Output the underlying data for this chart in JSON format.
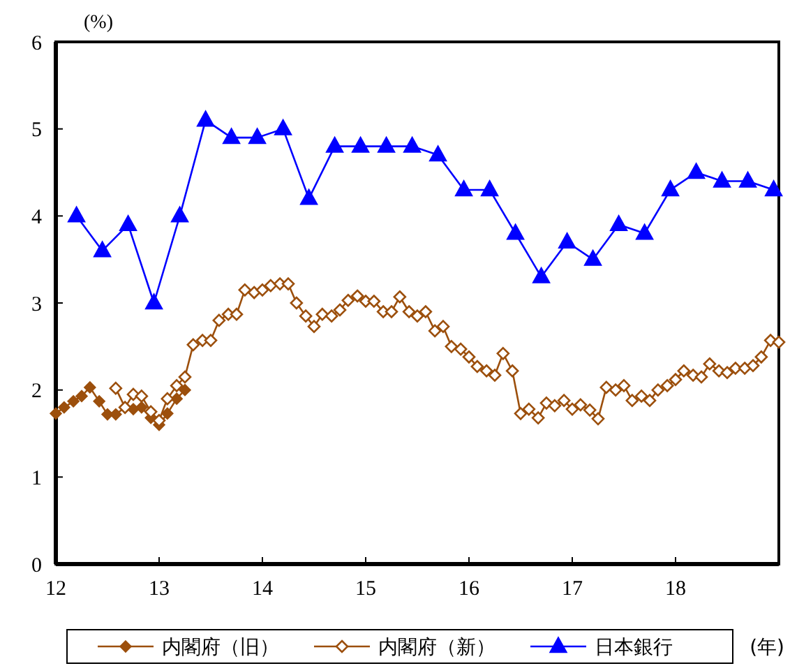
{
  "chart_data": {
    "type": "line",
    "ylabel": "(%)",
    "xlabel": "(年)",
    "xlim": [
      12,
      19
    ],
    "xticks": [
      12,
      13,
      14,
      15,
      16,
      17,
      18
    ],
    "ylim": [
      0,
      6
    ],
    "yticks": [
      0,
      1,
      2,
      3,
      4,
      5,
      6
    ],
    "grid": false,
    "legend": "bottom",
    "series": [
      {
        "name": "内閣府（旧）",
        "color": "#9c4f0c",
        "marker": "diamond",
        "x": [
          12.0,
          12.08,
          12.17,
          12.25,
          12.33,
          12.42,
          12.5,
          12.58,
          12.67,
          12.75,
          12.83,
          12.92,
          13.0,
          13.08,
          13.17,
          13.25
        ],
        "values": [
          1.73,
          1.8,
          1.87,
          1.93,
          2.03,
          1.87,
          1.72,
          1.72,
          1.8,
          1.78,
          1.8,
          1.68,
          1.6,
          1.73,
          1.9,
          2.0
        ]
      },
      {
        "name": "内閣府（新）",
        "color": "#9c4f0c",
        "marker": "diamond",
        "x": [
          12.58,
          12.67,
          12.75,
          12.83,
          12.92,
          13.0,
          13.08,
          13.17,
          13.25,
          13.33,
          13.42,
          13.5,
          13.58,
          13.67,
          13.75,
          13.83,
          13.92,
          14.0,
          14.08,
          14.17,
          14.25,
          14.33,
          14.42,
          14.5,
          14.58,
          14.67,
          14.75,
          14.83,
          14.92,
          15.0,
          15.08,
          15.17,
          15.25,
          15.33,
          15.42,
          15.5,
          15.58,
          15.67,
          15.75,
          15.83,
          15.92,
          16.0,
          16.08,
          16.17,
          16.25,
          16.33,
          16.42,
          16.5,
          16.58,
          16.67,
          16.75,
          16.83,
          16.92,
          17.0,
          17.08,
          17.17,
          17.25,
          17.33,
          17.42,
          17.5,
          17.58,
          17.67,
          17.75,
          17.83,
          17.92,
          18.0,
          18.08,
          18.17,
          18.25,
          18.33,
          18.42,
          18.5,
          18.58,
          18.67,
          18.75,
          18.83,
          18.92,
          19.0
        ],
        "values": [
          2.02,
          1.8,
          1.95,
          1.93,
          1.75,
          1.65,
          1.9,
          2.05,
          2.15,
          2.52,
          2.57,
          2.57,
          2.8,
          2.87,
          2.87,
          3.15,
          3.12,
          3.15,
          3.2,
          3.22,
          3.22,
          3.0,
          2.85,
          2.73,
          2.87,
          2.85,
          2.92,
          3.03,
          3.08,
          3.02,
          3.02,
          2.9,
          2.9,
          3.07,
          2.9,
          2.85,
          2.9,
          2.68,
          2.73,
          2.5,
          2.47,
          2.38,
          2.27,
          2.22,
          2.17,
          2.42,
          2.22,
          1.73,
          1.78,
          1.68,
          1.85,
          1.82,
          1.88,
          1.78,
          1.83,
          1.77,
          1.67,
          2.03,
          2.0,
          2.05,
          1.88,
          1.93,
          1.88,
          2.0,
          2.05,
          2.12,
          2.22,
          2.17,
          2.15,
          2.3,
          2.22,
          2.2,
          2.25,
          2.25,
          2.28,
          2.38,
          2.57,
          2.55
        ]
      },
      {
        "name": "日本銀行",
        "color": "#0000ff",
        "marker": "triangle",
        "x": [
          12.2,
          12.45,
          12.7,
          12.95,
          13.2,
          13.45,
          13.7,
          13.95,
          14.2,
          14.45,
          14.7,
          14.95,
          15.2,
          15.45,
          15.7,
          15.95,
          16.2,
          16.45,
          16.7,
          16.95,
          17.2,
          17.45,
          17.7,
          17.95,
          18.2,
          18.45,
          18.7,
          18.95
        ],
        "values": [
          4.0,
          3.6,
          3.9,
          3.0,
          4.0,
          5.1,
          4.9,
          4.9,
          5.0,
          4.2,
          4.8,
          4.8,
          4.8,
          4.8,
          4.7,
          4.3,
          4.3,
          3.8,
          3.3,
          3.7,
          3.5,
          3.9,
          3.8,
          4.3,
          4.5,
          4.4,
          4.4,
          4.3
        ]
      }
    ]
  }
}
